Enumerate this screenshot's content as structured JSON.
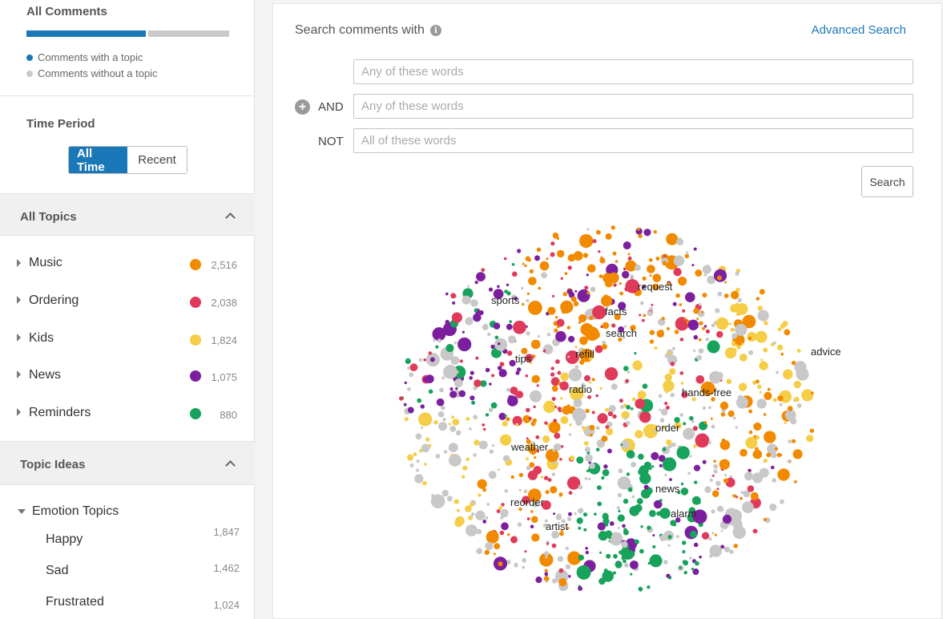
{
  "sidebar": {
    "comments": {
      "title": "All Comments",
      "with_topic_fraction": 0.59,
      "legend": [
        {
          "label": "Comments with a topic",
          "color": "#1a78b8"
        },
        {
          "label": "Comments without a topic",
          "color": "#cacaca"
        }
      ]
    },
    "time_period": {
      "title": "Time Period",
      "options": [
        "All Time",
        "Recent"
      ],
      "selected": "All Time"
    },
    "all_topics": {
      "title": "All Topics",
      "items": [
        {
          "label": "Music",
          "count": "2,516",
          "color": "#f28a00"
        },
        {
          "label": "Ordering",
          "count": "2,038",
          "color": "#e03a5a"
        },
        {
          "label": "Kids",
          "count": "1,824",
          "color": "#f5cd47"
        },
        {
          "label": "News",
          "count": "1,075",
          "color": "#7c1f9e"
        },
        {
          "label": "Reminders",
          "count": "880",
          "color": "#17a35b"
        }
      ]
    },
    "topic_ideas": {
      "title": "Topic Ideas",
      "group": "Emotion Topics",
      "items": [
        {
          "label": "Happy",
          "count": "1,847"
        },
        {
          "label": "Sad",
          "count": "1,462"
        },
        {
          "label": "Frustrated",
          "count": "1,024"
        }
      ]
    }
  },
  "main": {
    "search_title": "Search comments with",
    "info_icon": "info-icon",
    "advanced_search": "Advanced Search",
    "rows": [
      {
        "operator": "",
        "placeholder": "Any of these words"
      },
      {
        "operator": "AND",
        "placeholder": "Any of these words"
      },
      {
        "operator": "NOT",
        "placeholder": "All of these words"
      }
    ],
    "search_button": "Search",
    "bubble_labels": [
      "sports",
      "request",
      "facts",
      "search",
      "refill",
      "tips",
      "advice",
      "radio",
      "hands-free",
      "order",
      "weather",
      "news",
      "reorder",
      "alarm",
      "artist"
    ]
  },
  "colors": {
    "accent": "#1a78b8",
    "music": "#f28a00",
    "ordering": "#e03a5a",
    "kids": "#f5cd47",
    "news": "#7c1f9e",
    "reminders": "#17a35b",
    "unassigned": "#c8c8c8"
  }
}
